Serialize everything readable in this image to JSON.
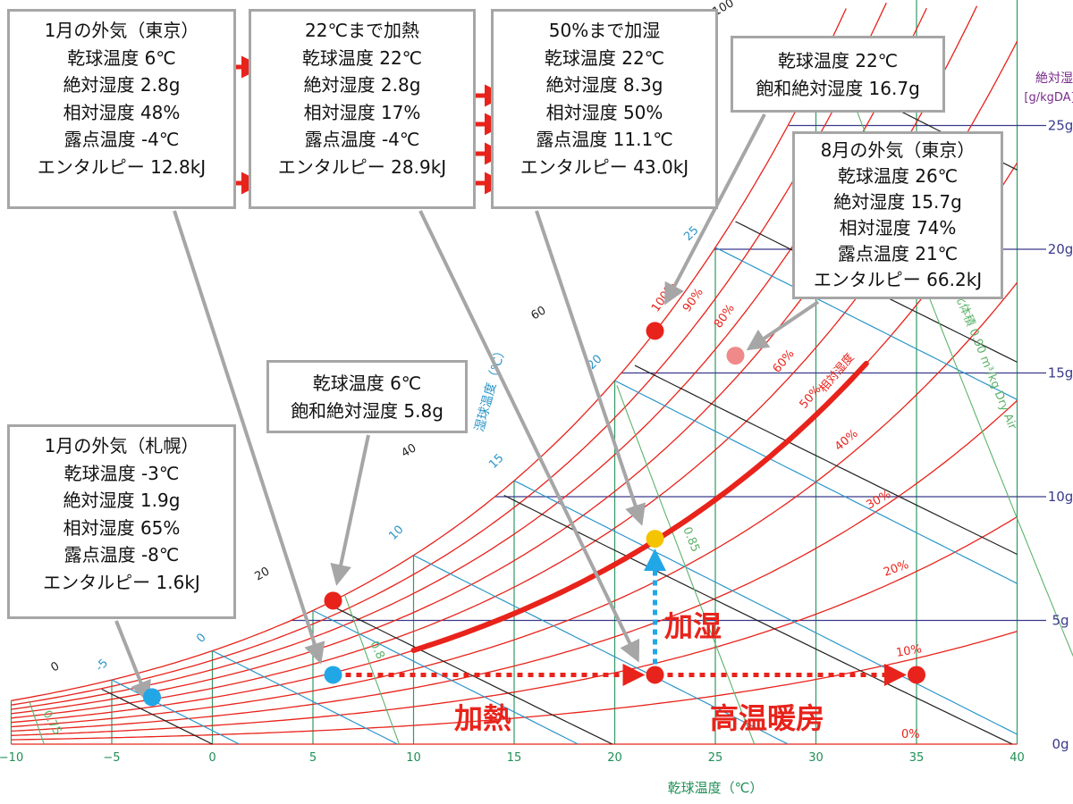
{
  "chart_data": {
    "type": "scatter",
    "chart_kind": "psychrometric chart",
    "x_axis": {
      "label": "乾球温度（℃）",
      "range": [
        -10,
        40
      ],
      "ticks": [
        "−10",
        "−5",
        "0",
        "5",
        "10",
        "15",
        "20",
        "25",
        "30",
        "35",
        "40"
      ]
    },
    "y_axis": {
      "label_line1": "絶対湿度",
      "label_line2": "[g/kgDA]",
      "range": [
        0,
        26
      ],
      "position": "right",
      "ticks": [
        {
          "value": 0,
          "label": "0g"
        },
        {
          "value": 5,
          "label": "5g"
        },
        {
          "value": 10,
          "label": "10g"
        },
        {
          "value": 15,
          "label": "15g"
        },
        {
          "value": 20,
          "label": "20g"
        },
        {
          "value": 25,
          "label": "25g"
        }
      ]
    },
    "rh_curves": [
      10,
      20,
      30,
      40,
      50,
      60,
      70,
      80,
      90,
      100
    ],
    "rh_labels": [
      {
        "rh": 100,
        "text": "100%"
      },
      {
        "rh": 90,
        "text": "90%"
      },
      {
        "rh": 80,
        "text": "80%"
      },
      {
        "rh": 60,
        "text": "60%"
      },
      {
        "rh": 50,
        "text": "50%"
      },
      {
        "rh": 40,
        "text": "40%"
      },
      {
        "rh": 30,
        "text": "30%"
      },
      {
        "rh": 20,
        "text": "20%"
      },
      {
        "rh": 10,
        "text": "10%"
      },
      {
        "rh": 0,
        "text": "0%"
      }
    ],
    "rh_axis_label": "相対湿度",
    "wet_bulb_lines": [
      -5,
      0,
      5,
      10,
      15,
      20,
      25
    ],
    "wet_bulb_labels": [
      {
        "t": -5,
        "text": "-5"
      },
      {
        "t": 0,
        "text": "0"
      },
      {
        "t": 10,
        "text": "10"
      },
      {
        "t": 15,
        "text": "15"
      },
      {
        "t": 20,
        "text": "20"
      },
      {
        "t": 25,
        "text": "25"
      }
    ],
    "wet_bulb_axis_label": "湿球温度（℃）",
    "enthalpy_lines": [
      0,
      20,
      40,
      60,
      80,
      100
    ],
    "enthalpy_labels": [
      {
        "h": 0,
        "text": "0"
      },
      {
        "h": 20,
        "text": "20"
      },
      {
        "h": 40,
        "text": "40"
      },
      {
        "h": 60,
        "text": "60"
      },
      {
        "h": 100,
        "text": "100"
      }
    ],
    "specific_volume_lines": [
      0.75,
      0.8,
      0.85,
      0.9
    ],
    "specific_volume_labels": [
      {
        "v": 0.75,
        "text": "0.75"
      },
      {
        "v": 0.8,
        "text": "0.8"
      },
      {
        "v": 0.85,
        "text": "0.85"
      },
      {
        "v": 0.9,
        "text": "比体積 0.90 m³/kg Dry Air"
      }
    ],
    "points": [
      {
        "name": "sapporo-jan",
        "t": -3,
        "x": 1.9,
        "color": "#22a7e6"
      },
      {
        "name": "tokyo-jan",
        "t": 6,
        "x": 2.8,
        "color": "#22a7e6"
      },
      {
        "name": "saturation-6c",
        "t": 6,
        "x": 5.8,
        "color": "#e8231b"
      },
      {
        "name": "heated-22c",
        "t": 22,
        "x": 2.8,
        "color": "#e8231b"
      },
      {
        "name": "humidified-50pct",
        "t": 22,
        "x": 8.3,
        "color": "#f5c400"
      },
      {
        "name": "saturation-22c",
        "t": 22,
        "x": 16.7,
        "color": "#e8231b"
      },
      {
        "name": "tokyo-aug",
        "t": 26,
        "x": 15.7,
        "color": "#f08a8a"
      },
      {
        "name": "high-temp-heating",
        "t": 35,
        "x": 2.8,
        "color": "#e8231b"
      }
    ],
    "annotations": {
      "heating": "加熱",
      "humidifying": "加湿",
      "high_temp_heating": "高温暖房"
    }
  },
  "boxes": {
    "tokyo_jan": [
      "1月の外気（東京）",
      "乾球温度 6℃",
      "絶対湿度 2.8g",
      "相対湿度 48%",
      "露点温度 -4℃",
      "エンタルピー 12.8kJ"
    ],
    "heated": [
      "22℃まで加熱",
      "乾球温度 22℃",
      "絶対湿度 2.8g",
      "相対湿度 17%",
      "露点温度 -4℃",
      "エンタルピー 28.9kJ"
    ],
    "humidified": [
      "50%まで加湿",
      "乾球温度 22℃",
      "絶対湿度 8.3g",
      "相対湿度 50%",
      "露点温度 11.1℃",
      "エンタルピー 43.0kJ"
    ],
    "sat22": [
      "乾球温度 22℃",
      "飽和絶対湿度 16.7g"
    ],
    "tokyo_aug": [
      "8月の外気（東京）",
      "乾球温度 26℃",
      "絶対湿度 15.7g",
      "相対湿度 74%",
      "露点温度 21℃",
      "エンタルピー 66.2kJ"
    ],
    "sat6": [
      "乾球温度 6℃",
      "飽和絶対湿度 5.8g"
    ],
    "sapporo_jan": [
      "1月の外気（札幌）",
      "乾球温度 -3℃",
      "絶対湿度 1.9g",
      "相対湿度 65%",
      "露点温度 -8℃",
      "エンタルピー 1.6kJ"
    ]
  },
  "colors": {
    "rh": "#e8231b",
    "wet_bulb": "#2a95c8",
    "enthalpy": "#222222",
    "specific_volume": "#5db36a",
    "grid_x": "#2f9a63",
    "grid_y": "#3a3a8c",
    "axis_text_x": "#1f8f55",
    "axis_text_y": "#3a3a8c",
    "process": "#e8231b",
    "humidify_arrow": "#22a7e6",
    "leader": "#a6a6a6"
  }
}
